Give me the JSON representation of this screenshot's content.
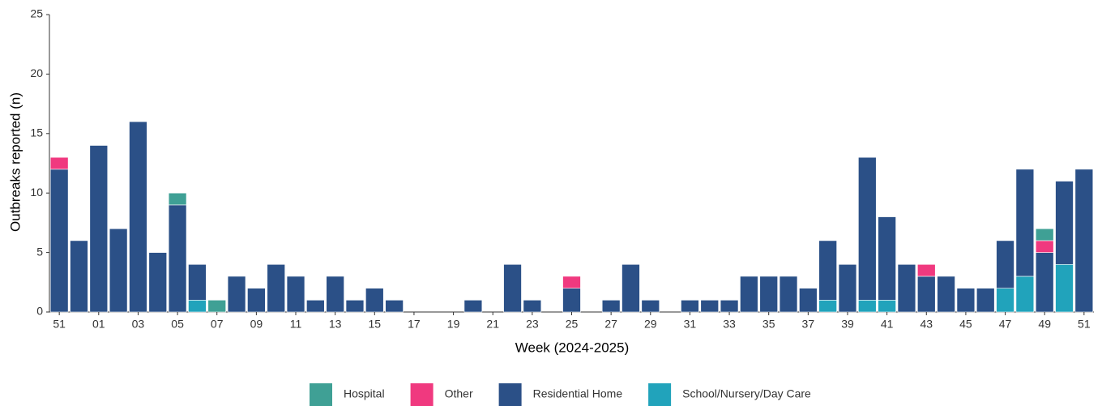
{
  "chart_data": {
    "type": "stacked_bar",
    "x_label": "Week (2024-2025)",
    "y_label": "Outbreaks reported (n)",
    "categories": [
      "51",
      null,
      "01",
      null,
      "03",
      null,
      "05",
      null,
      "07",
      null,
      "09",
      null,
      "11",
      null,
      "13",
      null,
      "15",
      null,
      "17",
      null,
      "19",
      null,
      "21",
      null,
      "23",
      null,
      "25",
      null,
      "27",
      null,
      "29",
      null,
      "31",
      null,
      "33",
      null,
      "35",
      null,
      "37",
      null,
      "39",
      null,
      "41",
      null,
      "43",
      null,
      "45",
      null,
      "47",
      null,
      "49",
      null,
      "51"
    ],
    "series": [
      {
        "name": "Hospital",
        "color": "#3fa095",
        "values": [
          0,
          0,
          0,
          0,
          0,
          0,
          1,
          0,
          1,
          0,
          0,
          0,
          0,
          0,
          0,
          0,
          0,
          0,
          0,
          0,
          0,
          0,
          0,
          0,
          0,
          0,
          0,
          0,
          0,
          0,
          0,
          0,
          0,
          0,
          0,
          0,
          0,
          0,
          0,
          0,
          0,
          0,
          0,
          0,
          0,
          0,
          0,
          0,
          0,
          0,
          1,
          0,
          0
        ]
      },
      {
        "name": "Other",
        "color": "#f0397f",
        "values": [
          1,
          0,
          0,
          0,
          0,
          0,
          0,
          0,
          0,
          0,
          0,
          0,
          0,
          0,
          0,
          0,
          0,
          0,
          0,
          0,
          0,
          0,
          0,
          0,
          0,
          0,
          1,
          0,
          0,
          0,
          0,
          0,
          0,
          0,
          0,
          0,
          0,
          0,
          0,
          0,
          0,
          0,
          0,
          0,
          1,
          0,
          0,
          0,
          0,
          0,
          1,
          0,
          0
        ]
      },
      {
        "name": "Residential Home",
        "color": "#2b5087",
        "values": [
          12,
          6,
          14,
          7,
          16,
          5,
          9,
          3,
          0,
          3,
          2,
          4,
          3,
          1,
          3,
          1,
          2,
          1,
          0,
          0,
          0,
          1,
          0,
          4,
          1,
          0,
          2,
          0,
          1,
          4,
          1,
          0,
          1,
          1,
          1,
          3,
          3,
          3,
          2,
          5,
          4,
          12,
          7,
          4,
          3,
          3,
          2,
          2,
          4,
          9,
          5,
          7,
          12
        ]
      },
      {
        "name": "School/Nursery/Day Care",
        "color": "#21a3bb",
        "values": [
          0,
          0,
          0,
          0,
          0,
          0,
          0,
          1,
          0,
          0,
          0,
          0,
          0,
          0,
          0,
          0,
          0,
          0,
          0,
          0,
          0,
          0,
          0,
          0,
          0,
          0,
          0,
          0,
          0,
          0,
          0,
          0,
          0,
          0,
          0,
          0,
          0,
          0,
          0,
          1,
          0,
          1,
          1,
          0,
          0,
          0,
          0,
          0,
          2,
          3,
          0,
          4,
          0
        ]
      }
    ],
    "stack_order": [
      "School/Nursery/Day Care",
      "Residential Home",
      "Other",
      "Hospital"
    ],
    "ylim": [
      0,
      25
    ],
    "yticks": [
      0,
      5,
      10,
      15,
      20,
      25
    ],
    "grid": false,
    "legend": "bottom"
  }
}
